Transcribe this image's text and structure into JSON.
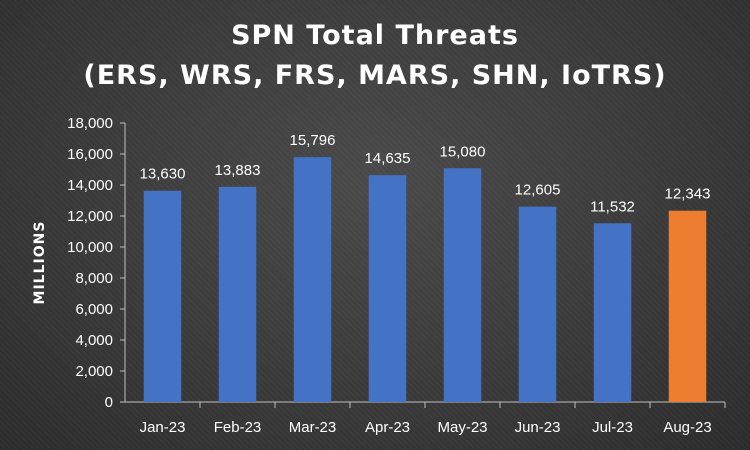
{
  "chart_data": {
    "type": "bar",
    "title_line1": "SPN Total Threats",
    "title_line2": "(ERS, WRS, FRS, MARS, SHN, IoTRS)",
    "xlabel": "",
    "ylabel": "MILLIONS",
    "categories": [
      "Jan-23",
      "Feb-23",
      "Mar-23",
      "Apr-23",
      "May-23",
      "Jun-23",
      "Jul-23",
      "Aug-23"
    ],
    "values": [
      13630,
      13883,
      15796,
      14635,
      15080,
      12605,
      11532,
      12343
    ],
    "data_labels": [
      "13,630",
      "13,883",
      "15,796",
      "14,635",
      "15,080",
      "12,605",
      "11,532",
      "12,343"
    ],
    "ylim": [
      0,
      18000
    ],
    "yticks": [
      "0",
      "2,000",
      "4,000",
      "6,000",
      "8,000",
      "10,000",
      "12,000",
      "14,000",
      "16,000",
      "18,000"
    ],
    "grid": false,
    "legend": "none",
    "colors": {
      "bar": "#4472C4",
      "highlight_bar": "#ED7D31",
      "text": "#FFFFFF",
      "axis": "#BFBFBF"
    },
    "highlight_index": 7
  }
}
